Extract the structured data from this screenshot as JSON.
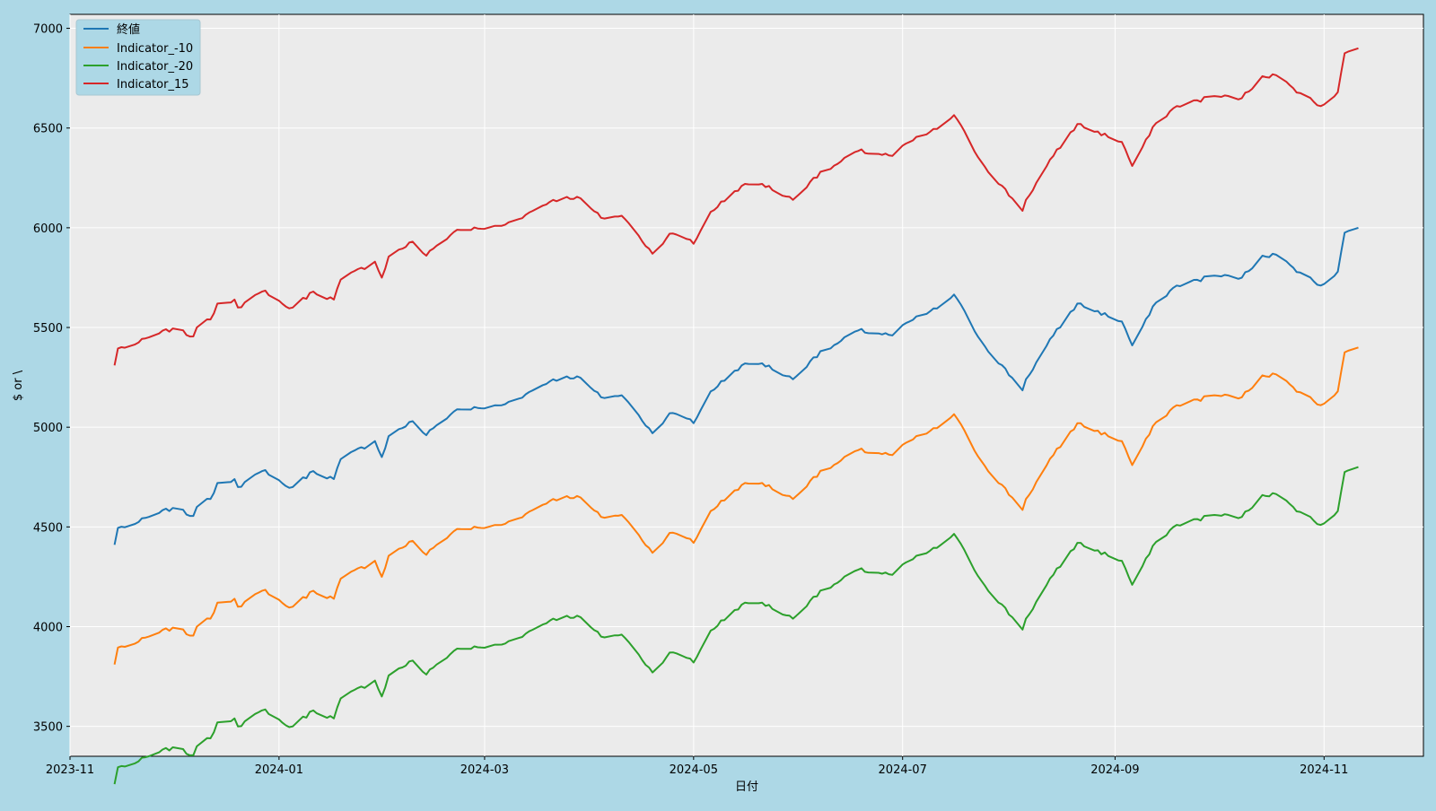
{
  "chart_data": {
    "type": "line",
    "title": "",
    "xlabel": "日付",
    "ylabel": "$ or \\",
    "x_start": "2023-11-14",
    "x_end": "2024-11-11",
    "xlim": [
      "2023-11-01",
      "2024-11-30"
    ],
    "ylim": [
      3350,
      7070
    ],
    "x_ticks": [
      "2023-11-01",
      "2024-01-01",
      "2024-03-01",
      "2024-05-01",
      "2024-07-01",
      "2024-09-01",
      "2024-11-01"
    ],
    "x_tick_labels": [
      "2023-11",
      "2024-01",
      "2024-03",
      "2024-05",
      "2024-07",
      "2024-09",
      "2024-11"
    ],
    "y_ticks": [
      3500,
      4000,
      4500,
      5000,
      5500,
      6000,
      6500,
      7000
    ],
    "y_tick_labels": [
      "3500",
      "4000",
      "4500",
      "5000",
      "5500",
      "6000",
      "6500",
      "7000"
    ],
    "grid": true,
    "legend_position": "top-left",
    "colors": {
      "figure_background": "#add8e6",
      "plot_background": "#ebebeb",
      "grid": "#ffffff",
      "legend_background": "#add8e6"
    },
    "base_series": {
      "name": "終値",
      "points": [
        [
          "2023-11-14",
          4410
        ],
        [
          "2023-11-15",
          4495
        ],
        [
          "2023-11-20",
          4515
        ],
        [
          "2023-11-24",
          4550
        ],
        [
          "2023-12-01",
          4595
        ],
        [
          "2023-12-07",
          4555
        ],
        [
          "2023-12-08",
          4600
        ],
        [
          "2023-12-12",
          4640
        ],
        [
          "2023-12-14",
          4720
        ],
        [
          "2023-12-19",
          4740
        ],
        [
          "2023-12-20",
          4700
        ],
        [
          "2023-12-28",
          4785
        ],
        [
          "2024-01-03",
          4705
        ],
        [
          "2024-01-05",
          4700
        ],
        [
          "2024-01-11",
          4780
        ],
        [
          "2024-01-17",
          4740
        ],
        [
          "2024-01-19",
          4840
        ],
        [
          "2024-01-29",
          4930
        ],
        [
          "2024-01-31",
          4850
        ],
        [
          "2024-02-02",
          4955
        ],
        [
          "2024-02-09",
          5030
        ],
        [
          "2024-02-13",
          4960
        ],
        [
          "2024-02-16",
          5010
        ],
        [
          "2024-02-22",
          5090
        ],
        [
          "2024-02-29",
          5095
        ],
        [
          "2024-03-06",
          5110
        ],
        [
          "2024-03-13",
          5165
        ],
        [
          "2024-03-21",
          5240
        ],
        [
          "2024-03-28",
          5255
        ],
        [
          "2024-04-04",
          5150
        ],
        [
          "2024-04-10",
          5160
        ],
        [
          "2024-04-15",
          5060
        ],
        [
          "2024-04-19",
          4970
        ],
        [
          "2024-04-24",
          5070
        ],
        [
          "2024-04-30",
          5040
        ],
        [
          "2024-05-01",
          5020
        ],
        [
          "2024-05-06",
          5180
        ],
        [
          "2024-05-15",
          5310
        ],
        [
          "2024-05-21",
          5320
        ],
        [
          "2024-05-30",
          5240
        ],
        [
          "2024-06-05",
          5350
        ],
        [
          "2024-06-12",
          5420
        ],
        [
          "2024-06-18",
          5485
        ],
        [
          "2024-06-28",
          5460
        ],
        [
          "2024-07-03",
          5530
        ],
        [
          "2024-07-11",
          5595
        ],
        [
          "2024-07-16",
          5665
        ],
        [
          "2024-07-24",
          5430
        ],
        [
          "2024-08-05",
          5185
        ],
        [
          "2024-08-06",
          5240
        ],
        [
          "2024-08-14",
          5460
        ],
        [
          "2024-08-21",
          5620
        ],
        [
          "2024-09-03",
          5530
        ],
        [
          "2024-09-06",
          5410
        ],
        [
          "2024-09-13",
          5625
        ],
        [
          "2024-09-19",
          5710
        ],
        [
          "2024-09-30",
          5760
        ],
        [
          "2024-10-08",
          5750
        ],
        [
          "2024-10-14",
          5860
        ],
        [
          "2024-10-18",
          5865
        ],
        [
          "2024-10-23",
          5800
        ],
        [
          "2024-10-31",
          5710
        ],
        [
          "2024-11-05",
          5780
        ],
        [
          "2024-11-07",
          5975
        ],
        [
          "2024-11-11",
          6000
        ]
      ]
    },
    "series": [
      {
        "name": "終値",
        "offset": 0,
        "color": "#1f77b4"
      },
      {
        "name": "Indicator_-10",
        "offset": -600,
        "color": "#ff7f0e"
      },
      {
        "name": "Indicator_-20",
        "offset": -1200,
        "color": "#2ca02c"
      },
      {
        "name": "Indicator_15",
        "offset": 900,
        "color": "#d62728"
      }
    ]
  }
}
